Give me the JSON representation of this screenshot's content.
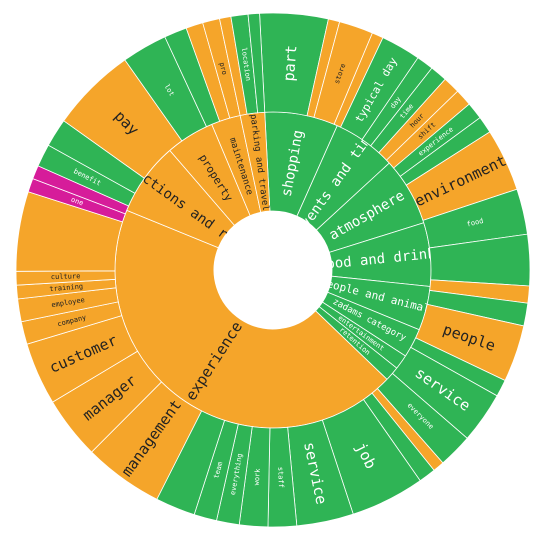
{
  "chart_data": {
    "type": "sunburst",
    "title": "",
    "colors": {
      "positive": "#2fb455",
      "negative": "#f5a52a",
      "mixed": "#d61c9a"
    },
    "inner_ring": [
      {
        "label": "shopping",
        "value": 7.5,
        "sentiment": "positive"
      },
      {
        "label": "events and time",
        "value": 6.5,
        "sentiment": "positive"
      },
      {
        "label": "atmosphere",
        "value": 7.0,
        "sentiment": "positive"
      },
      {
        "label": "food and drinks",
        "value": 6.5,
        "sentiment": "positive"
      },
      {
        "label": "people and animals",
        "value": 4.5,
        "sentiment": "positive"
      },
      {
        "label": "zadams category",
        "value": 3.0,
        "sentiment": "positive"
      },
      {
        "label": "entertainment",
        "value": 1.5,
        "sentiment": "positive"
      },
      {
        "label": "retention",
        "value": 1.5,
        "sentiment": "positive"
      },
      {
        "label": "experience",
        "value": 44.0,
        "sentiment": "negative"
      },
      {
        "label": "transactions and rewards",
        "value": 7.5,
        "sentiment": "negative"
      },
      {
        "label": "property",
        "value": 5.0,
        "sentiment": "negative"
      },
      {
        "label": "maintenance",
        "value": 3.0,
        "sentiment": "negative"
      },
      {
        "label": "parking and travel",
        "value": 2.5,
        "sentiment": "negative"
      }
    ],
    "outer_ring": [
      {
        "label": "part",
        "value": 6.0,
        "sentiment": "positive",
        "label_size": "large"
      },
      {
        "label": "",
        "value": 1.0,
        "sentiment": "negative"
      },
      {
        "label": "store",
        "value": 3.0,
        "sentiment": "negative",
        "label_size": "small"
      },
      {
        "label": "",
        "value": 1.0,
        "sentiment": "negative"
      },
      {
        "label": "typical day",
        "value": 3.5,
        "sentiment": "positive",
        "label_size": "medium"
      },
      {
        "label": "day",
        "value": 1.5,
        "sentiment": "positive",
        "label_size": "small"
      },
      {
        "label": "time",
        "value": 1.5,
        "sentiment": "positive",
        "label_size": "small"
      },
      {
        "label": "hour",
        "value": 1.5,
        "sentiment": "negative",
        "label_size": "small"
      },
      {
        "label": "shift",
        "value": 1.5,
        "sentiment": "negative",
        "label_size": "small"
      },
      {
        "label": "experience",
        "value": 1.5,
        "sentiment": "positive",
        "label_size": "small"
      },
      {
        "label": "",
        "value": 1.5,
        "sentiment": "positive"
      },
      {
        "label": "environment",
        "value": 5.5,
        "sentiment": "negative",
        "label_size": "large"
      },
      {
        "label": "food",
        "value": 4.0,
        "sentiment": "positive",
        "label_size": "small"
      },
      {
        "label": "",
        "value": 4.5,
        "sentiment": "positive"
      },
      {
        "label": "",
        "value": 1.5,
        "sentiment": "negative"
      },
      {
        "label": "",
        "value": 2.0,
        "sentiment": "positive"
      },
      {
        "label": "people",
        "value": 5.0,
        "sentiment": "negative",
        "label_size": "large"
      },
      {
        "label": "",
        "value": 1.5,
        "sentiment": "positive"
      },
      {
        "label": "service",
        "value": 4.5,
        "sentiment": "positive",
        "label_size": "large"
      },
      {
        "label": "everyone",
        "value": 3.0,
        "sentiment": "positive",
        "label_size": "small"
      },
      {
        "label": "",
        "value": 1.0,
        "sentiment": "negative"
      },
      {
        "label": "",
        "value": 1.5,
        "sentiment": "positive"
      },
      {
        "label": "job",
        "value": 6.5,
        "sentiment": "positive",
        "label_size": "large"
      },
      {
        "label": "service",
        "value": 5.0,
        "sentiment": "positive",
        "label_size": "large"
      },
      {
        "label": "staff",
        "value": 2.5,
        "sentiment": "positive",
        "label_size": "small"
      },
      {
        "label": "work",
        "value": 2.5,
        "sentiment": "positive",
        "label_size": "small"
      },
      {
        "label": "everything",
        "value": 2.0,
        "sentiment": "positive",
        "label_size": "small"
      },
      {
        "label": "team",
        "value": 2.0,
        "sentiment": "positive",
        "label_size": "small"
      },
      {
        "label": "",
        "value": 3.5,
        "sentiment": "positive"
      },
      {
        "label": "management",
        "value": 7.0,
        "sentiment": "negative",
        "label_size": "large"
      },
      {
        "label": "manager",
        "value": 5.5,
        "sentiment": "negative",
        "label_size": "large"
      },
      {
        "label": "customer",
        "value": 5.5,
        "sentiment": "negative",
        "label_size": "large"
      },
      {
        "label": "company",
        "value": 2.0,
        "sentiment": "negative",
        "label_size": "small"
      },
      {
        "label": "employee",
        "value": 2.0,
        "sentiment": "negative",
        "label_size": "small"
      },
      {
        "label": "training",
        "value": 1.2,
        "sentiment": "negative",
        "label_size": "small"
      },
      {
        "label": "culture",
        "value": 1.2,
        "sentiment": "negative",
        "label_size": "small"
      },
      {
        "label": "",
        "value": 7.0,
        "sentiment": "negative"
      },
      {
        "label": "one",
        "value": 1.2,
        "sentiment": "mixed",
        "label_size": "small"
      },
      {
        "label": "",
        "value": 1.2,
        "sentiment": "mixed"
      },
      {
        "label": "benefit",
        "value": 2.0,
        "sentiment": "positive",
        "label_size": "small"
      },
      {
        "label": "",
        "value": 2.5,
        "sentiment": "positive"
      },
      {
        "label": "pay",
        "value": 7.5,
        "sentiment": "negative",
        "label_size": "large"
      },
      {
        "label": "lot",
        "value": 4.0,
        "sentiment": "positive",
        "label_size": "small"
      },
      {
        "label": "",
        "value": 2.0,
        "sentiment": "positive"
      },
      {
        "label": "",
        "value": 1.5,
        "sentiment": "negative"
      },
      {
        "label": "pro",
        "value": 1.5,
        "sentiment": "negative",
        "label_size": "small"
      },
      {
        "label": "",
        "value": 1.0,
        "sentiment": "negative"
      },
      {
        "label": "location",
        "value": 1.5,
        "sentiment": "positive",
        "label_size": "small"
      },
      {
        "label": "",
        "value": 1.0,
        "sentiment": "positive"
      }
    ]
  }
}
